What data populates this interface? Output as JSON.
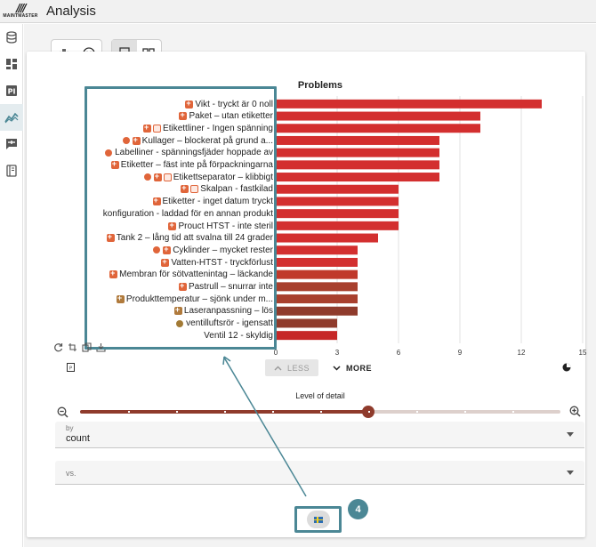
{
  "app": {
    "logo_text": "MAINTMASTER",
    "title": "Analysis"
  },
  "sidebar": {
    "items": [
      {
        "icon": "database-icon"
      },
      {
        "icon": "dashboard-icon"
      },
      {
        "icon": "pi-icon"
      },
      {
        "icon": "analysis-icon",
        "active": true
      },
      {
        "icon": "feedback-icon"
      },
      {
        "icon": "notebook-icon"
      }
    ]
  },
  "toolbar": {
    "left_group": [
      "split-icon",
      "emoji-icon"
    ],
    "layout_group": [
      "rows-layout-icon",
      "columns-layout-icon"
    ],
    "flag_icon": "swedish-flag-icon",
    "report_icon": "report-icon"
  },
  "chart_data": {
    "type": "bar",
    "orientation": "horizontal",
    "title": "Problems",
    "categories": [
      "Vikt - tryckt är 0 noll",
      "Paket – utan etiketter",
      "Etikettliner - Ingen spänning",
      "Kullager – blockerat på grund a...",
      "Labelliner - spänningsfjäder hoppade av",
      "Etiketter – fäst inte på förpackningarna",
      "Etikettseparator – klibbigt",
      "Skalpan - fastkilad",
      "Etiketter - inget datum tryckt",
      "konfiguration - laddad för en annan produkt",
      "Prouct HTST - inte steril",
      "Tank 2 – lång tid att svalna till 24 grader",
      "Cyklinder – mycket rester",
      "Vatten-HTST - tryckförlust",
      "Membran för sötvattenintag – läckande",
      "Pastrull – snurrar inte",
      "Produkttemperatur – sjönk under m...",
      "Laseranpassning – lös",
      "ventilluftsrör - igensatt",
      "Ventil 12 - skyldig"
    ],
    "values": [
      13,
      10,
      10,
      8,
      8,
      8,
      8,
      6,
      6,
      6,
      6,
      5,
      4,
      4,
      4,
      4,
      4,
      4,
      3,
      3
    ],
    "bar_colors": [
      "#d32f2f",
      "#d32f2f",
      "#d32f2f",
      "#d32f2f",
      "#d32f2f",
      "#d32f2f",
      "#d32f2f",
      "#d32f2f",
      "#d32f2f",
      "#d32f2f",
      "#d32f2f",
      "#d32f2f",
      "#d32f2f",
      "#d32f2f",
      "#c0392b",
      "#a8402e",
      "#a8402e",
      "#8f3b2c",
      "#8f3b2c",
      "#c62828"
    ],
    "xlim": [
      0,
      15
    ],
    "xticks": [
      "0",
      "3",
      "6",
      "9",
      "12",
      "15"
    ],
    "grid": true
  },
  "chart_controls": {
    "less_label": "LESS",
    "more_label": "MORE"
  },
  "level_of_detail": {
    "label": "Level of detail",
    "value_fraction": 0.6
  },
  "by_select": {
    "label": "by",
    "value": "count"
  },
  "vs_select": {
    "label": "vs."
  },
  "callout": {
    "step": "4"
  },
  "colors": {
    "accent": "#4b8795",
    "bar": "#d32f2f",
    "slider": "#8f3b2c"
  }
}
